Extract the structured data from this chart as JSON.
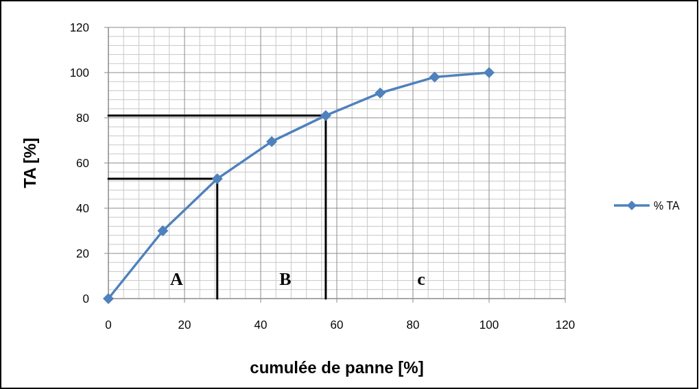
{
  "chart_data": {
    "type": "line",
    "xlabel": "cumulée de panne [%]",
    "ylabel": "TA [%]",
    "xlim": [
      0,
      120
    ],
    "xticks": [
      0,
      20,
      40,
      60,
      80,
      100,
      120
    ],
    "ylim": [
      0,
      120
    ],
    "yticks": [
      0,
      20,
      40,
      60,
      80,
      100,
      120
    ],
    "grid": true,
    "legend": "right",
    "marker": "diamond",
    "line_style": "solid",
    "series": [
      {
        "name": "% TA",
        "color": "#4f81bd",
        "x": [
          0,
          14.3,
          28.6,
          42.9,
          57.1,
          71.4,
          85.7,
          100
        ],
        "values": [
          0,
          30,
          53,
          69.5,
          81,
          91,
          98,
          100
        ]
      },
      {
        "color": "#000000",
        "marker": "none",
        "x": [
          0,
          28.6,
          28.6
        ],
        "values": [
          53,
          53,
          0
        ]
      },
      {
        "color": "#000000",
        "marker": "none",
        "x": [
          0,
          57.1,
          57.1
        ],
        "values": [
          81,
          81,
          0
        ]
      }
    ],
    "annotations": [
      "A",
      "B",
      "c"
    ]
  }
}
